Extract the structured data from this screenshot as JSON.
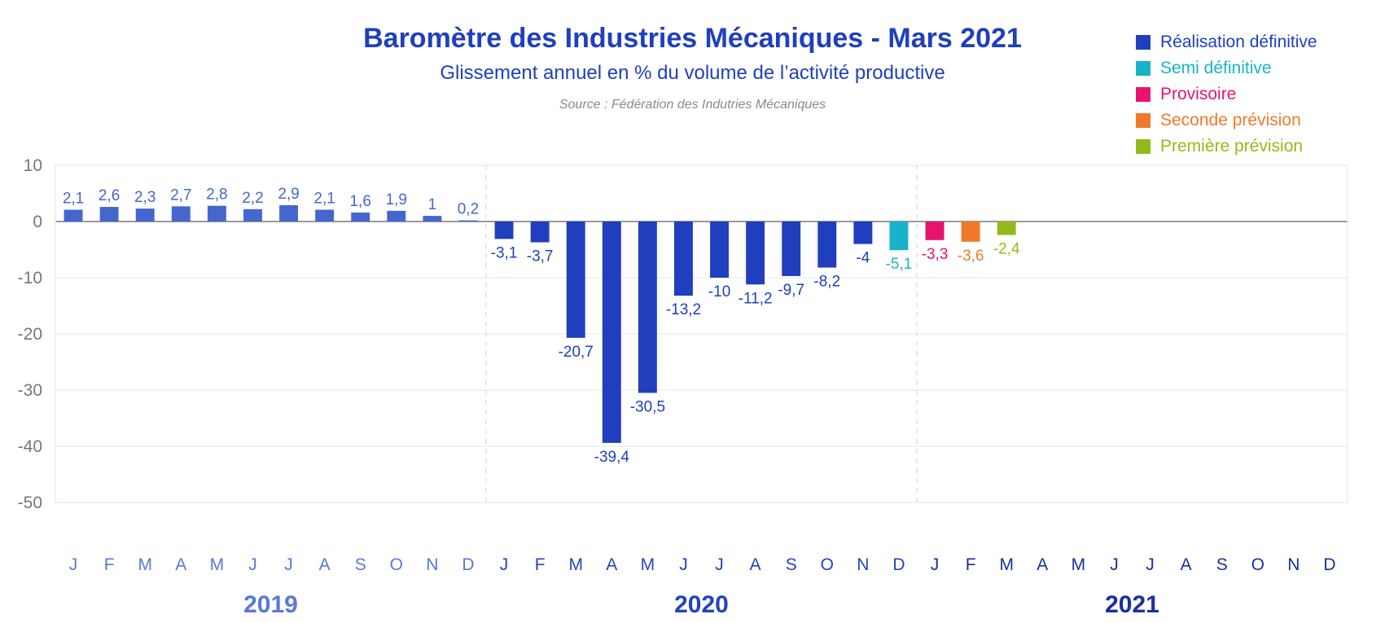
{
  "header": {
    "title": "Baromètre des Industries Mécaniques - Mars 2021",
    "subtitle": "Glissement annuel en % du volume de l’activité productive",
    "source": "Source : Fédération des Indutries Mécaniques"
  },
  "legend": [
    {
      "label": "Réalisation définitive",
      "color": "#1f3fbf"
    },
    {
      "label": "Semi définitive",
      "color": "#17b4c9"
    },
    {
      "label": "Provisoire",
      "color": "#e6136f"
    },
    {
      "label": "Seconde prévision",
      "color": "#f07a2a"
    },
    {
      "label": "Première prévision",
      "color": "#92bb1a"
    }
  ],
  "chart_data": {
    "type": "bar",
    "title": "Baromètre des Industries Mécaniques - Mars 2021",
    "subtitle": "Glissement annuel en % du volume de l’activité productive",
    "ylim": [
      -50,
      10
    ],
    "yticks": [
      10,
      0,
      -10,
      -20,
      -30,
      -40,
      -50
    ],
    "grid": true,
    "legend_position": "top-right",
    "years": [
      {
        "label": "2019",
        "color": "#5a78d6"
      },
      {
        "label": "2020",
        "color": "#2543bf"
      },
      {
        "label": "2021",
        "color": "#1a2fa0"
      }
    ],
    "months": [
      "J",
      "F",
      "M",
      "A",
      "M",
      "J",
      "J",
      "A",
      "S",
      "O",
      "N",
      "D"
    ],
    "series": [
      {
        "year": "2019",
        "status": "Réalisation définitive",
        "color": "#4566cf",
        "label_color": "#4566cf",
        "values": [
          2.1,
          2.6,
          2.3,
          2.7,
          2.8,
          2.2,
          2.9,
          2.1,
          1.6,
          1.9,
          1,
          0.2
        ],
        "labels": [
          "2,1",
          "2,6",
          "2,3",
          "2,7",
          "2,8",
          "2,2",
          "2,9",
          "2,1",
          "1,6",
          "1,9",
          "1",
          "0,2"
        ]
      },
      {
        "year": "2020",
        "status": "Réalisation définitive",
        "color": "#1f3fbf",
        "label_color": "#1f3fbf",
        "values": [
          -3.1,
          -3.7,
          -20.7,
          -39.4,
          -30.5,
          -13.2,
          -10,
          -11.2,
          -9.7,
          -8.2,
          -4,
          null
        ],
        "labels": [
          "-3,1",
          "-3,7",
          "-20,7",
          "-39,4",
          "-30,5",
          "-13,2",
          "-10",
          "-11,2",
          "-9,7",
          "-8,2",
          "-4",
          null
        ]
      },
      {
        "year": "2020",
        "status": "Semi définitive",
        "color": "#17b4c9",
        "label_color": "#17b4c9",
        "values": [
          null,
          null,
          null,
          null,
          null,
          null,
          null,
          null,
          null,
          null,
          null,
          -5.1
        ],
        "labels": [
          null,
          null,
          null,
          null,
          null,
          null,
          null,
          null,
          null,
          null,
          null,
          "-5,1"
        ]
      },
      {
        "year": "2021",
        "status": "Provisoire",
        "color": "#e6136f",
        "label_color": "#e6136f",
        "values": [
          -3.3,
          null,
          null,
          null,
          null,
          null,
          null,
          null,
          null,
          null,
          null,
          null
        ],
        "labels": [
          "-3,3",
          null,
          null,
          null,
          null,
          null,
          null,
          null,
          null,
          null,
          null,
          null
        ]
      },
      {
        "year": "2021",
        "status": "Seconde prévision",
        "color": "#f07a2a",
        "label_color": "#f07a2a",
        "values": [
          null,
          -3.6,
          null,
          null,
          null,
          null,
          null,
          null,
          null,
          null,
          null,
          null
        ],
        "labels": [
          null,
          "-3,6",
          null,
          null,
          null,
          null,
          null,
          null,
          null,
          null,
          null,
          null
        ]
      },
      {
        "year": "2021",
        "status": "Première prévision",
        "color": "#92bb1a",
        "label_color": "#92bb1a",
        "values": [
          null,
          null,
          -2.4,
          null,
          null,
          null,
          null,
          null,
          null,
          null,
          null,
          null
        ],
        "labels": [
          null,
          null,
          "-2,4",
          null,
          null,
          null,
          null,
          null,
          null,
          null,
          null,
          null
        ]
      }
    ]
  }
}
